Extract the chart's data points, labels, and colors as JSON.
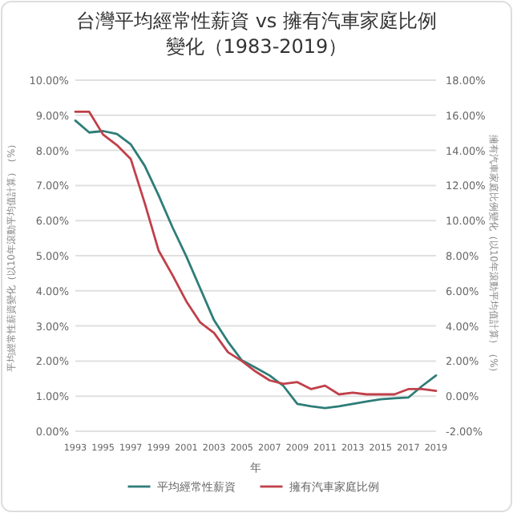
{
  "chart_data": {
    "type": "line",
    "title": "台灣平均經常性薪資 vs 擁有汽車家庭比例變化（1983-2019）",
    "xlabel": "年",
    "ylabel": "平均經常性薪資變化（以10年滾動平均值計算）（%）",
    "y2label": "擁有汽車家庭比例變化（以10年滾動平均值計算）（%）",
    "x": [
      1993,
      1994,
      1995,
      1996,
      1997,
      1998,
      1999,
      2000,
      2001,
      2002,
      2003,
      2004,
      2005,
      2006,
      2007,
      2008,
      2009,
      2010,
      2011,
      2012,
      2013,
      2014,
      2015,
      2016,
      2017,
      2018,
      2019
    ],
    "xlim": [
      1993,
      2019
    ],
    "xticks": [
      1993,
      1995,
      1997,
      1999,
      2001,
      2003,
      2005,
      2007,
      2009,
      2011,
      2013,
      2015,
      2017,
      2019
    ],
    "ylim": [
      0,
      10
    ],
    "yticks": [
      {
        "value": 0,
        "label": "0.00%"
      },
      {
        "value": 1,
        "label": "1.00%"
      },
      {
        "value": 2,
        "label": "2.00%"
      },
      {
        "value": 3,
        "label": "3.00%"
      },
      {
        "value": 4,
        "label": "4.00%"
      },
      {
        "value": 5,
        "label": "5.00%"
      },
      {
        "value": 6,
        "label": "6.00%"
      },
      {
        "value": 7,
        "label": "7.00%"
      },
      {
        "value": 8,
        "label": "8.00%"
      },
      {
        "value": 9,
        "label": "9.00%"
      },
      {
        "value": 10,
        "label": "10.00%"
      }
    ],
    "y2lim": [
      -2,
      18
    ],
    "y2ticks": [
      {
        "value": -2,
        "label": "-2.00%"
      },
      {
        "value": 0,
        "label": "0.00%"
      },
      {
        "value": 2,
        "label": "2.00%"
      },
      {
        "value": 4,
        "label": "4.00%"
      },
      {
        "value": 6,
        "label": "6.00%"
      },
      {
        "value": 8,
        "label": "8.00%"
      },
      {
        "value": 10,
        "label": "10.00%"
      },
      {
        "value": 12,
        "label": "12.00%"
      },
      {
        "value": 14,
        "label": "14.00%"
      },
      {
        "value": 16,
        "label": "16.00%"
      },
      {
        "value": 18,
        "label": "18.00%"
      }
    ],
    "grid": "y",
    "legend": "bottom",
    "series": [
      {
        "name": "平均經常性薪資",
        "color": "#2e7d78",
        "values": [
          8.85,
          8.51,
          8.55,
          8.47,
          8.17,
          7.56,
          6.72,
          5.81,
          4.98,
          4.07,
          3.16,
          2.55,
          2.02,
          1.81,
          1.59,
          1.29,
          0.78,
          0.71,
          0.66,
          0.71,
          0.78,
          0.85,
          0.91,
          0.94,
          0.96,
          1.29,
          1.59
        ]
      },
      {
        "name": "擁有汽車家庭比例",
        "color": "#c0404a",
        "axis": "y2",
        "values": [
          16.2,
          16.2,
          14.9,
          14.3,
          13.5,
          11.0,
          8.3,
          6.9,
          5.4,
          4.2,
          3.6,
          2.5,
          2.0,
          1.4,
          0.9,
          0.7,
          0.8,
          0.4,
          0.6,
          0.1,
          0.2,
          0.1,
          0.1,
          0.1,
          0.4,
          0.4,
          0.3
        ]
      }
    ]
  }
}
